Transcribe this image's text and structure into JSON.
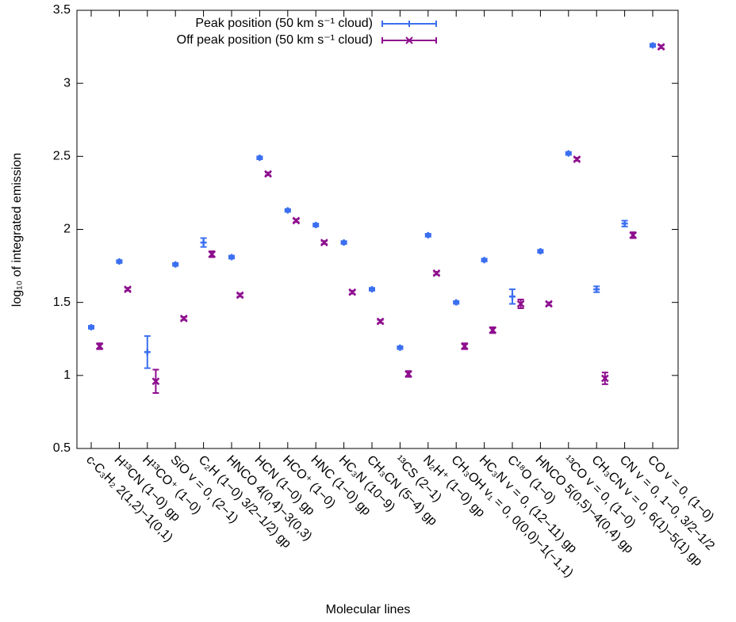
{
  "chart_data": {
    "type": "errorbar",
    "xlabel": "Molecular lines",
    "ylabel": "log₁₀ of integrated emission",
    "categories": [
      "c-C₃H₂ 2(1,2)−1(0,1)",
      "H¹³CN (1−0) gp",
      "H¹³CO⁺ (1−0)",
      "SiO v = 0, (2−1)",
      "C₂H (1−0) 3/2−1/2) gp",
      "HNCO 4(0,4)−3(0,3)",
      "HCN (1−0) gp",
      "HCO⁺ (1−0)",
      "HNC (1−0) gp",
      "HC₃N (10−9)",
      "CH₃CN (5−4) gp",
      "¹³CS (2−1)",
      "N₂H⁺ (1−0) gp",
      "CH₃OH v₁ = 0, 0(0,0)−1(−1,1)",
      "HC₃N v = 0, (12−11) gp",
      "C¹⁸O (1−0)",
      "HNCO 5(0,5)−4(0,4) gp",
      "¹³CO v = 0, (1−0)",
      "CH₃CN v = 0, 6(1)−5(1) gp",
      "CN v = 0, 1−0, 3/2−1/2",
      "CO v = 0, (1−0)"
    ],
    "series": [
      {
        "name": "Peak position (50 km s⁻¹ cloud)",
        "color": "#3b6ff0",
        "values": [
          1.33,
          1.78,
          1.16,
          1.76,
          1.91,
          1.81,
          2.49,
          2.13,
          2.03,
          1.91,
          1.59,
          1.19,
          1.96,
          1.5,
          1.79,
          1.54,
          1.85,
          2.52,
          1.59,
          2.04,
          3.26
        ],
        "errors": [
          0.01,
          0.01,
          0.11,
          0.01,
          0.03,
          0.01,
          0.01,
          0.01,
          0.01,
          0.01,
          0.01,
          0.01,
          0.01,
          0.01,
          0.01,
          0.05,
          0.01,
          0.01,
          0.02,
          0.02,
          0.01
        ]
      },
      {
        "name": "Off peak position (50 km s⁻¹ cloud)",
        "color": "#8e0e8e",
        "values": [
          1.2,
          1.59,
          0.96,
          1.39,
          1.83,
          1.55,
          2.38,
          2.06,
          1.91,
          1.57,
          1.37,
          1.01,
          1.7,
          1.2,
          1.31,
          1.49,
          1.49,
          2.48,
          0.98,
          1.96,
          3.25
        ],
        "errors": [
          0.02,
          0.01,
          0.08,
          0.01,
          0.02,
          0.01,
          0.01,
          0.01,
          0.01,
          0.01,
          0.01,
          0.02,
          0.01,
          0.02,
          0.02,
          0.03,
          0.01,
          0.01,
          0.04,
          0.02,
          0.01
        ]
      }
    ],
    "ylim": [
      0.5,
      3.5
    ],
    "yticks": [
      0.5,
      1,
      1.5,
      2,
      2.5,
      3,
      3.5
    ],
    "legend": "top"
  }
}
